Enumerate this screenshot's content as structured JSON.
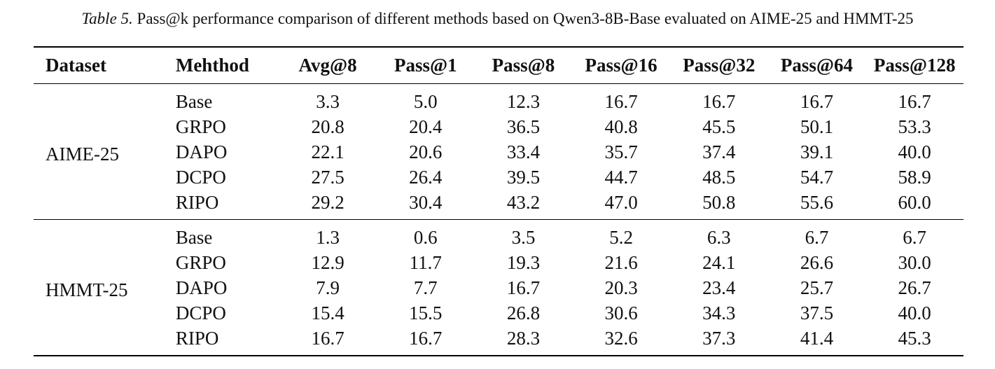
{
  "caption": {
    "label": "Table 5.",
    "text": "Pass@k performance comparison of different methods based on Qwen3-8B-Base evaluated on AIME-25 and HMMT-25"
  },
  "table": {
    "headers": [
      "Dataset",
      "Mehthod",
      "Avg@8",
      "Pass@1",
      "Pass@8",
      "Pass@16",
      "Pass@32",
      "Pass@64",
      "Pass@128"
    ],
    "groups": [
      {
        "dataset": "AIME-25",
        "rows": [
          {
            "method": "Base",
            "values": [
              "3.3",
              "5.0",
              "12.3",
              "16.7",
              "16.7",
              "16.7",
              "16.7"
            ]
          },
          {
            "method": "GRPO",
            "values": [
              "20.8",
              "20.4",
              "36.5",
              "40.8",
              "45.5",
              "50.1",
              "53.3"
            ]
          },
          {
            "method": "DAPO",
            "values": [
              "22.1",
              "20.6",
              "33.4",
              "35.7",
              "37.4",
              "39.1",
              "40.0"
            ]
          },
          {
            "method": "DCPO",
            "values": [
              "27.5",
              "26.4",
              "39.5",
              "44.7",
              "48.5",
              "54.7",
              "58.9"
            ]
          },
          {
            "method": "RIPO",
            "values": [
              "29.2",
              "30.4",
              "43.2",
              "47.0",
              "50.8",
              "55.6",
              "60.0"
            ]
          }
        ]
      },
      {
        "dataset": "HMMT-25",
        "rows": [
          {
            "method": "Base",
            "values": [
              "1.3",
              "0.6",
              "3.5",
              "5.2",
              "6.3",
              "6.7",
              "6.7"
            ]
          },
          {
            "method": "GRPO",
            "values": [
              "12.9",
              "11.7",
              "19.3",
              "21.6",
              "24.1",
              "26.6",
              "30.0"
            ]
          },
          {
            "method": "DAPO",
            "values": [
              "7.9",
              "7.7",
              "16.7",
              "20.3",
              "23.4",
              "25.7",
              "26.7"
            ]
          },
          {
            "method": "DCPO",
            "values": [
              "15.4",
              "15.5",
              "26.8",
              "30.6",
              "34.3",
              "37.5",
              "40.0"
            ]
          },
          {
            "method": "RIPO",
            "values": [
              "16.7",
              "16.7",
              "28.3",
              "32.6",
              "37.3",
              "41.4",
              "45.3"
            ]
          }
        ]
      }
    ]
  }
}
